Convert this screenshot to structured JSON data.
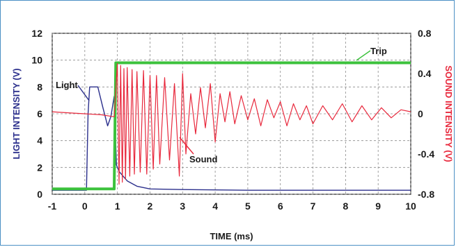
{
  "chart_data": {
    "type": "line",
    "xlabel": "TIME (ms)",
    "ylabel_left": "LIGHT INTENSITY (V)",
    "ylabel_right": "SOUND INTENSITY (V)",
    "xlim": [
      -1,
      10
    ],
    "ylim_left": [
      0,
      12
    ],
    "ylim_right": [
      -0.8,
      0.8
    ],
    "x_ticks": [
      "-1",
      "0",
      "1",
      "2",
      "3",
      "4",
      "5",
      "6",
      "7",
      "8",
      "9",
      "10"
    ],
    "y_left_ticks": [
      "0",
      "2",
      "4",
      "6",
      "8",
      "10",
      "12"
    ],
    "y_right_ticks": [
      "-0.8",
      "-0.4",
      "0",
      "0.4",
      "0.8"
    ],
    "grid": true,
    "colors": {
      "light": "#2b2f8c",
      "sound": "#e8283c",
      "trip": "#3cc23c",
      "left_axis_label": "#2b2f8c",
      "right_axis_label": "#e8283c"
    },
    "series": [
      {
        "name": "Light",
        "axis": "left",
        "points": [
          [
            -1,
            0.3
          ],
          [
            0.05,
            0.3
          ],
          [
            0.1,
            6
          ],
          [
            0.15,
            8
          ],
          [
            0.4,
            8
          ],
          [
            0.55,
            6.5
          ],
          [
            0.7,
            5.1
          ],
          [
            0.8,
            5.8
          ],
          [
            0.9,
            7.3
          ],
          [
            0.97,
            2.2
          ],
          [
            1.05,
            1.7
          ],
          [
            1.3,
            1.0
          ],
          [
            1.6,
            0.6
          ],
          [
            2.0,
            0.4
          ],
          [
            3,
            0.35
          ],
          [
            5,
            0.3
          ],
          [
            10,
            0.3
          ]
        ]
      },
      {
        "name": "Sound",
        "axis": "right",
        "points": [
          [
            -1,
            0.02
          ],
          [
            -0.5,
            0.01
          ],
          [
            0,
            0.0
          ],
          [
            0.5,
            -0.01
          ],
          [
            0.9,
            -0.03
          ],
          [
            1.0,
            0.5
          ],
          [
            1.05,
            -0.7
          ],
          [
            1.1,
            0.48
          ],
          [
            1.15,
            -0.68
          ],
          [
            1.2,
            0.45
          ],
          [
            1.25,
            -0.65
          ],
          [
            1.3,
            0.46
          ],
          [
            1.38,
            -0.62
          ],
          [
            1.45,
            0.44
          ],
          [
            1.52,
            -0.6
          ],
          [
            1.6,
            0.42
          ],
          [
            1.7,
            -0.58
          ],
          [
            1.8,
            0.43
          ],
          [
            1.9,
            -0.6
          ],
          [
            2.0,
            0.38
          ],
          [
            2.1,
            -0.55
          ],
          [
            2.2,
            0.38
          ],
          [
            2.3,
            -0.5
          ],
          [
            2.45,
            0.36
          ],
          [
            2.6,
            -0.46
          ],
          [
            2.75,
            0.3
          ],
          [
            2.9,
            -0.62
          ],
          [
            3.0,
            0.4
          ],
          [
            3.1,
            -0.4
          ],
          [
            3.25,
            0.2
          ],
          [
            3.4,
            -0.2
          ],
          [
            3.55,
            0.26
          ],
          [
            3.7,
            -0.14
          ],
          [
            3.85,
            0.3
          ],
          [
            4.0,
            -0.28
          ],
          [
            4.15,
            0.2
          ],
          [
            4.3,
            -0.08
          ],
          [
            4.45,
            0.22
          ],
          [
            4.6,
            -0.1
          ],
          [
            4.8,
            0.18
          ],
          [
            5.0,
            -0.06
          ],
          [
            5.2,
            0.15
          ],
          [
            5.4,
            -0.12
          ],
          [
            5.6,
            0.14
          ],
          [
            5.8,
            -0.04
          ],
          [
            6.0,
            0.12
          ],
          [
            6.2,
            -0.12
          ],
          [
            6.4,
            0.1
          ],
          [
            6.6,
            -0.06
          ],
          [
            6.8,
            0.08
          ],
          [
            7.0,
            -0.1
          ],
          [
            7.3,
            0.08
          ],
          [
            7.6,
            -0.06
          ],
          [
            7.9,
            0.1
          ],
          [
            8.2,
            -0.08
          ],
          [
            8.5,
            0.08
          ],
          [
            8.8,
            -0.06
          ],
          [
            9.1,
            0.06
          ],
          [
            9.4,
            -0.04
          ],
          [
            9.7,
            0.04
          ],
          [
            10,
            0.02
          ]
        ]
      },
      {
        "name": "Trip",
        "axis": "left",
        "points": [
          [
            -1,
            0.4
          ],
          [
            0.8,
            0.4
          ],
          [
            0.9,
            0.4
          ],
          [
            0.95,
            9.8
          ],
          [
            10,
            9.8
          ]
        ]
      }
    ],
    "annotations": [
      {
        "text": "Light",
        "series": "Light"
      },
      {
        "text": "Sound",
        "series": "Sound"
      },
      {
        "text": "Trip",
        "series": "Trip"
      }
    ]
  }
}
